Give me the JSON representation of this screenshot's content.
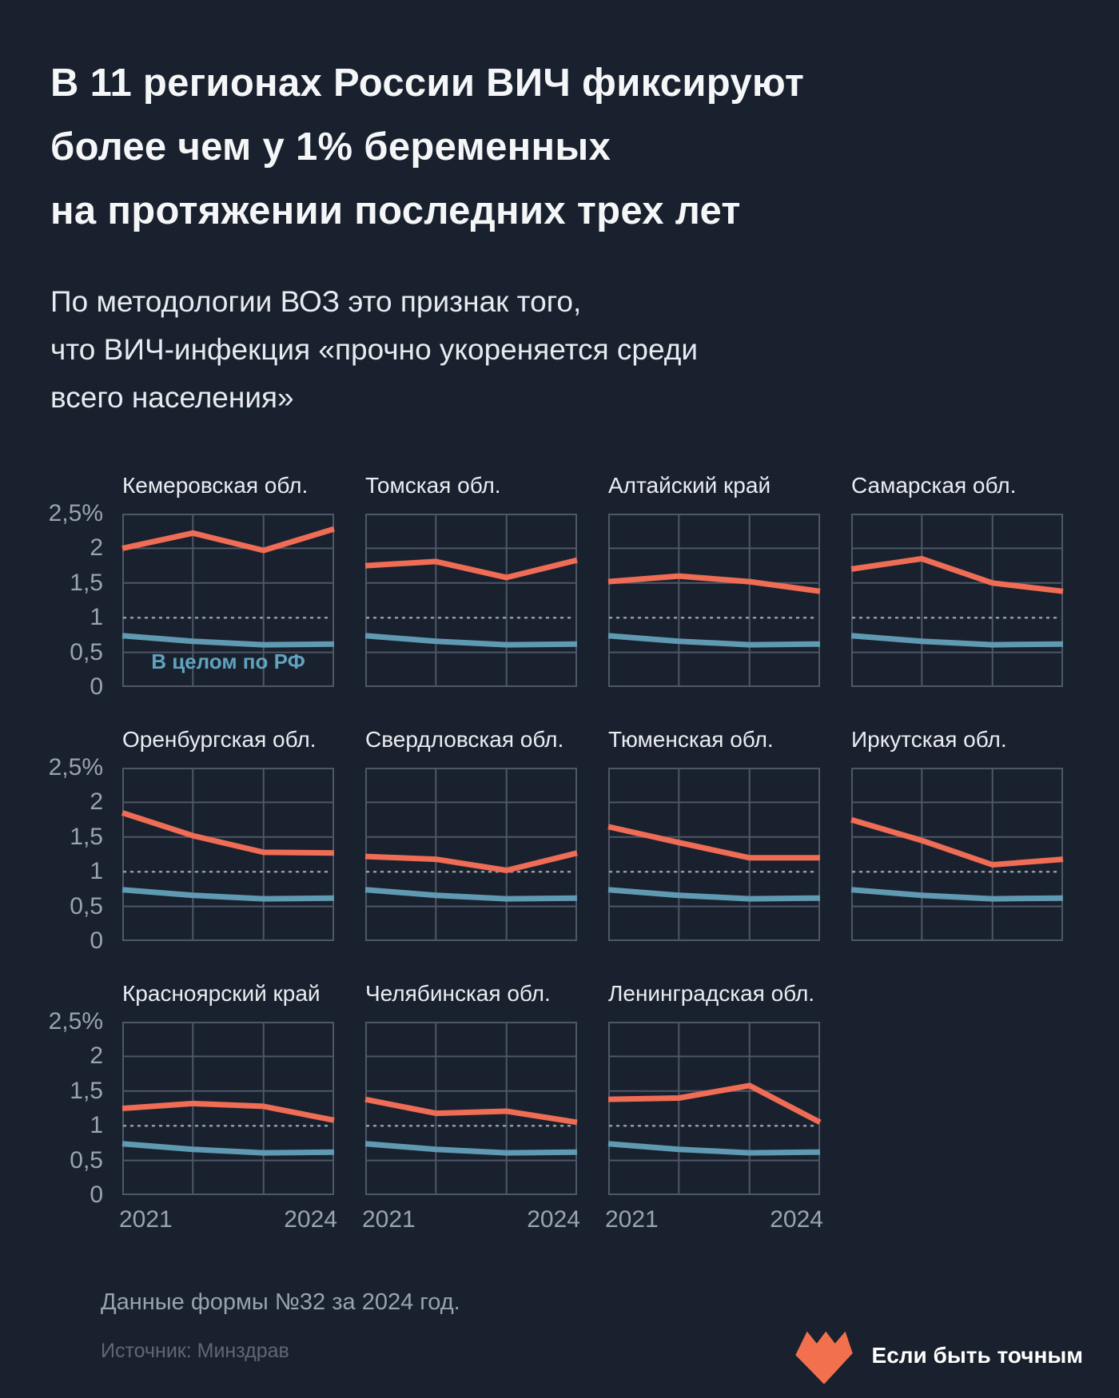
{
  "header": {
    "title": "В 11 регионах России ВИЧ фиксируют\nболее чем у 1% беременных\nна протяжении последних трех лет",
    "subtitle": "По методологии ВОЗ это признак того,\nчто ВИЧ-инфекция «прочно укореняется среди\nвсего населения»"
  },
  "colors": {
    "background": "#1a212e",
    "orange": "#ef6c55",
    "blue": "#5f9ab2",
    "grid": "#4e5766",
    "dashed_reference": "#939cab",
    "tick_text": "#9aa3b1",
    "logo_orange": "#f2704e"
  },
  "chart_data": {
    "type": "line",
    "x": [
      2021,
      2022,
      2023,
      2024
    ],
    "x_axis_labels": [
      "2021",
      "2024"
    ],
    "ylim": [
      0,
      2.5
    ],
    "unit": "%",
    "grid": "on",
    "grid_y_values": [
      0.5,
      1.5,
      2
    ],
    "grid_x_indices": [
      1,
      2
    ],
    "reference_line": {
      "value": 1,
      "style": "dashed"
    },
    "y_ticks": [
      {
        "label": "2,5%",
        "value": 2.5
      },
      {
        "label": "2",
        "value": 2
      },
      {
        "label": "1,5",
        "value": 1.5
      },
      {
        "label": "1",
        "value": 1
      },
      {
        "label": "0,5",
        "value": 0.5
      },
      {
        "label": "0",
        "value": 0
      }
    ],
    "baseline_series": {
      "label": "В целом по РФ",
      "values": [
        0.74,
        0.66,
        0.61,
        0.62
      ]
    },
    "regions": [
      {
        "name": "Кемеровская обл.",
        "values": [
          2.0,
          2.22,
          1.97,
          2.28
        ]
      },
      {
        "name": "Томская обл.",
        "values": [
          1.75,
          1.81,
          1.58,
          1.83
        ]
      },
      {
        "name": "Алтайский край",
        "values": [
          1.52,
          1.6,
          1.52,
          1.38
        ]
      },
      {
        "name": "Самарская обл.",
        "values": [
          1.7,
          1.85,
          1.5,
          1.38
        ]
      },
      {
        "name": "Оренбургская обл.",
        "values": [
          1.85,
          1.52,
          1.28,
          1.27
        ]
      },
      {
        "name": "Свердловская обл.",
        "values": [
          1.22,
          1.18,
          1.02,
          1.27
        ]
      },
      {
        "name": "Тюменская обл.",
        "values": [
          1.65,
          1.42,
          1.2,
          1.2
        ]
      },
      {
        "name": "Иркутская обл.",
        "values": [
          1.75,
          1.45,
          1.1,
          1.18
        ]
      },
      {
        "name": "Красноярский край",
        "values": [
          1.25,
          1.32,
          1.28,
          1.08
        ]
      },
      {
        "name": "Челябинская обл.",
        "values": [
          1.38,
          1.18,
          1.21,
          1.05
        ]
      },
      {
        "name": "Ленинградская обл.",
        "values": [
          1.38,
          1.4,
          1.58,
          1.05
        ]
      }
    ]
  },
  "footer": {
    "note": "Данные формы №32 за 2024 год.",
    "source": "Источник: Минздрав",
    "logo_text": "Если быть точным"
  }
}
